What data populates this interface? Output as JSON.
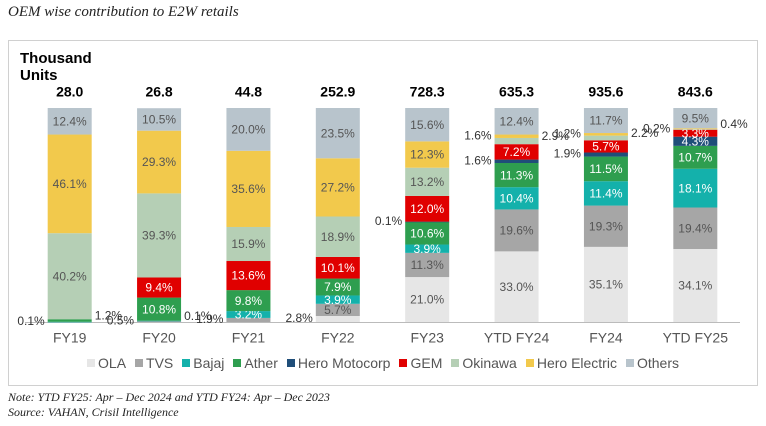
{
  "chart_data": {
    "type": "stacked_bar_100",
    "title": "OEM wise contribution to E2W retails",
    "y_label": "Thousand Units",
    "categories": [
      "FY19",
      "FY20",
      "FY21",
      "FY22",
      "FY23",
      "YTD FY24",
      "FY24",
      "YTD FY25"
    ],
    "totals": [
      28,
      26.8,
      44.8,
      252.9,
      728.3,
      635.3,
      935.6,
      843.6
    ],
    "total_labels": [
      "28.0",
      "26.8",
      "44.8",
      "252.9",
      "728.3",
      "635.3",
      "935.6",
      "843.6"
    ],
    "ylim": [
      0,
      100
    ],
    "series": [
      {
        "name": "OLA",
        "color": "#e6e6e6",
        "values": [
          null,
          null,
          null,
          2.8,
          21.0,
          33.0,
          35.1,
          34.1
        ],
        "value_labels": [
          null,
          null,
          null,
          "2.8%",
          "21.0%",
          "33.0%",
          "35.1%",
          "34.1%"
        ]
      },
      {
        "name": "TVS",
        "color": "#a6a6a6",
        "values": [
          null,
          0.5,
          1.9,
          5.7,
          11.3,
          19.6,
          19.3,
          19.4
        ],
        "value_labels": [
          null,
          "0.5%",
          "1.9%",
          "5.7%",
          "11.3%",
          "19.6%",
          "19.3%",
          "19.4%"
        ]
      },
      {
        "name": "Bajaj",
        "color": "#14b1ab",
        "values": [
          0.1,
          0.1,
          3.2,
          3.9,
          3.9,
          10.4,
          11.4,
          18.1
        ],
        "value_labels": [
          "0.1%",
          "0.1%",
          "3.2%",
          "3.9%",
          "3.9%",
          "10.4%",
          "11.4%",
          "18.1%"
        ]
      },
      {
        "name": "Ather",
        "color": "#2e9e4f",
        "values": [
          1.2,
          10.8,
          9.8,
          7.9,
          10.6,
          11.3,
          11.5,
          10.7
        ],
        "value_labels": [
          "1.2%",
          "10.8%",
          "9.8%",
          "7.9%",
          "10.6%",
          "11.3%",
          "11.5%",
          "10.7%"
        ]
      },
      {
        "name": "Hero Motocorp",
        "color": "#1f4e79",
        "values": [
          null,
          null,
          null,
          null,
          0.1,
          1.6,
          1.9,
          4.3
        ],
        "value_labels": [
          null,
          null,
          null,
          null,
          "0.1%",
          "1.6%",
          "1.9%",
          "4.3%"
        ]
      },
      {
        "name": "GEM",
        "color": "#e00000",
        "values": [
          null,
          9.4,
          13.6,
          10.1,
          12.0,
          7.2,
          5.7,
          3.3
        ],
        "value_labels": [
          null,
          "9.4%",
          "13.6%",
          "10.1%",
          "12.0%",
          "7.2%",
          "5.7%",
          "3.3%"
        ]
      },
      {
        "name": "Okinawa",
        "color": "#b5cfb5",
        "values": [
          40.2,
          39.3,
          15.9,
          18.9,
          13.2,
          2.9,
          2.2,
          0.2
        ],
        "value_labels": [
          "40.2%",
          "39.3%",
          "15.9%",
          "18.9%",
          "13.2%",
          "2.9%",
          "2.2%",
          "0.2%"
        ]
      },
      {
        "name": "Hero Electric",
        "color": "#f2c94c",
        "values": [
          46.1,
          29.3,
          35.6,
          27.2,
          12.3,
          1.6,
          1.2,
          0.4
        ],
        "value_labels": [
          "46.1%",
          "29.3%",
          "35.6%",
          "27.2%",
          "12.3%",
          "1.6%",
          "1.2%",
          "0.4%"
        ]
      },
      {
        "name": "Others",
        "color": "#b8c4cc",
        "values": [
          12.4,
          10.5,
          20.0,
          23.5,
          15.6,
          12.4,
          11.7,
          9.5
        ],
        "value_labels": [
          "12.4%",
          "10.5%",
          "20.0%",
          "23.5%",
          "15.6%",
          "12.4%",
          "11.7%",
          "9.5%"
        ]
      }
    ]
  },
  "notes": [
    "Note: YTD FY25: Apr – Dec 2024 and YTD FY24: Apr – Dec 2023",
    "Source: VAHAN, Crisil Intelligence"
  ]
}
